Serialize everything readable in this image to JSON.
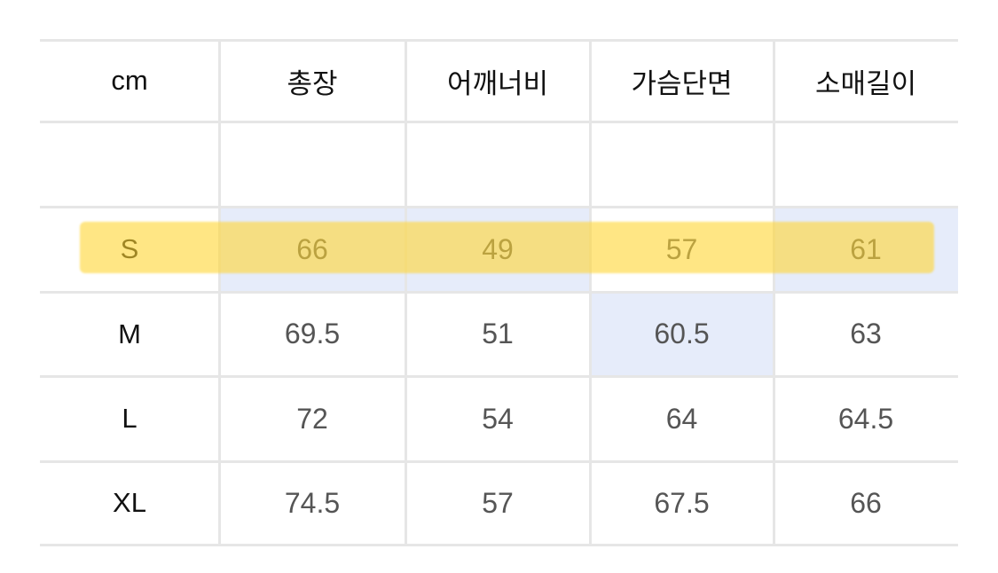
{
  "table": {
    "headers": [
      "cm",
      "총장",
      "어깨너비",
      "가슴단면",
      "소매길이"
    ],
    "rows": [
      {
        "size": "S",
        "values": [
          "66",
          "49",
          "57",
          "61"
        ]
      },
      {
        "size": "M",
        "values": [
          "69.5",
          "51",
          "60.5",
          "63"
        ]
      },
      {
        "size": "L",
        "values": [
          "72",
          "54",
          "64",
          "64.5"
        ]
      },
      {
        "size": "XL",
        "values": [
          "74.5",
          "57",
          "67.5",
          "66"
        ]
      }
    ]
  },
  "colors": {
    "highlight": "#ffd632",
    "cell_highlight": "#e6ecfa"
  }
}
